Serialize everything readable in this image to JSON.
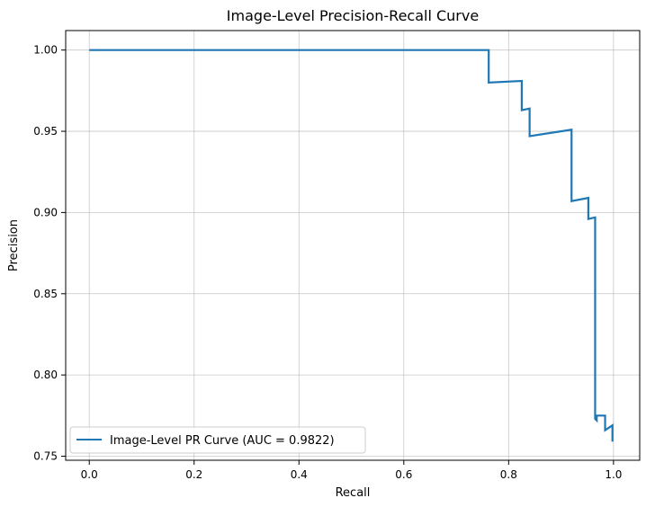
{
  "chart_data": {
    "type": "line",
    "title": "Image-Level Precision-Recall Curve",
    "xlabel": "Recall",
    "ylabel": "Precision",
    "xlim": [
      -0.045,
      1.05
    ],
    "ylim": [
      0.7475,
      1.012
    ],
    "grid": true,
    "legend_position": "lower-left",
    "xticks": [
      {
        "value": 0.0,
        "label": "0.0"
      },
      {
        "value": 0.2,
        "label": "0.2"
      },
      {
        "value": 0.4,
        "label": "0.4"
      },
      {
        "value": 0.6,
        "label": "0.6"
      },
      {
        "value": 0.8,
        "label": "0.8"
      },
      {
        "value": 1.0,
        "label": "1.0"
      }
    ],
    "yticks": [
      {
        "value": 0.75,
        "label": "0.75"
      },
      {
        "value": 0.8,
        "label": "0.80"
      },
      {
        "value": 0.85,
        "label": "0.85"
      },
      {
        "value": 0.9,
        "label": "0.90"
      },
      {
        "value": 0.95,
        "label": "0.95"
      },
      {
        "value": 1.0,
        "label": "1.00"
      }
    ],
    "series": [
      {
        "name": "Image-Level PR Curve (AUC = 0.9822)",
        "color": "#1f77b4",
        "x": [
          0.0,
          0.762,
          0.762,
          0.825,
          0.825,
          0.84,
          0.84,
          0.92,
          0.92,
          0.952,
          0.952,
          0.965,
          0.965,
          0.968,
          0.968,
          0.984,
          0.984,
          0.998,
          0.998
        ],
        "y": [
          1.0,
          1.0,
          0.98,
          0.981,
          0.963,
          0.964,
          0.947,
          0.951,
          0.907,
          0.909,
          0.896,
          0.897,
          0.773,
          0.772,
          0.775,
          0.775,
          0.766,
          0.769,
          0.759
        ]
      }
    ]
  }
}
